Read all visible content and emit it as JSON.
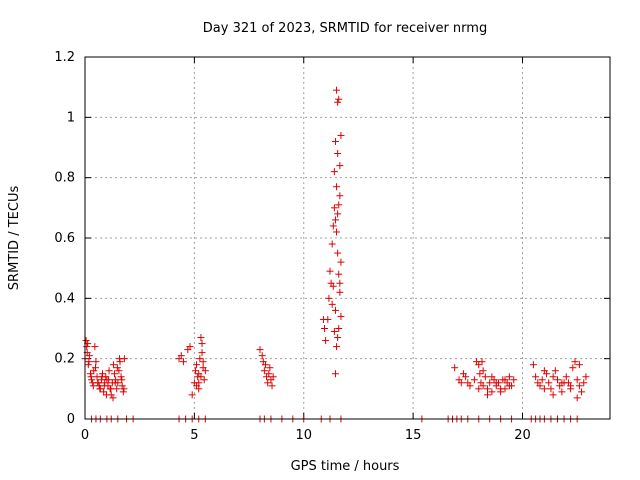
{
  "chart_data": {
    "type": "scatter",
    "title": "Day 321 of 2023, SRMTID for receiver nrmg",
    "xlabel": "GPS time / hours",
    "ylabel": "SRMTID / TECUs",
    "xlim": [
      0,
      24
    ],
    "ylim": [
      0,
      1.2
    ],
    "xticks": [
      0,
      5,
      10,
      15,
      20
    ],
    "xtick_labels": [
      "0",
      "5",
      "10",
      "15",
      "20"
    ],
    "yticks": [
      0,
      0.2,
      0.4,
      0.6,
      0.8,
      1.0,
      1.2
    ],
    "ytick_labels": [
      "0",
      "0.2",
      "0.4",
      "0.6",
      "0.8",
      "1",
      "1.2"
    ],
    "grid": true,
    "marker": "+",
    "color": "#e00000",
    "series": [
      {
        "name": "SRMTID",
        "x": [
          0.0,
          0.05,
          0.1,
          0.12,
          0.15,
          0.2,
          0.25,
          0.3,
          0.35,
          0.4,
          0.45,
          0.5,
          0.55,
          0.6,
          0.65,
          0.7,
          0.75,
          0.8,
          0.85,
          0.9,
          0.95,
          1.0,
          1.05,
          1.1,
          1.15,
          1.2,
          1.25,
          1.3,
          1.35,
          1.4,
          1.45,
          1.5,
          1.55,
          1.6,
          1.65,
          1.7,
          1.75,
          1.8,
          0.08,
          0.18,
          0.28,
          0.38,
          0.48,
          0.58,
          0.68,
          0.78,
          0.88,
          0.98,
          1.08,
          1.18,
          1.28,
          1.38,
          1.48,
          1.58,
          1.68,
          1.78,
          4.3,
          4.4,
          4.5,
          4.7,
          4.8,
          4.9,
          5.0,
          5.05,
          5.1,
          5.15,
          5.2,
          5.25,
          5.3,
          5.35,
          5.4,
          5.45,
          5.5,
          5.1,
          5.2,
          5.3,
          5.4,
          5.2,
          5.35,
          8.0,
          8.1,
          8.15,
          8.2,
          8.25,
          8.3,
          8.35,
          8.4,
          8.45,
          8.5,
          8.55,
          8.6,
          10.9,
          10.95,
          11.0,
          11.1,
          11.15,
          11.2,
          11.25,
          11.3,
          11.35,
          11.4,
          11.45,
          11.5,
          11.55,
          11.6,
          11.65,
          11.7,
          11.3,
          11.35,
          11.4,
          11.45,
          11.5,
          11.55,
          11.6,
          11.65,
          11.4,
          11.45,
          11.5,
          11.55,
          11.6,
          11.65,
          11.7,
          11.5,
          11.55,
          11.6,
          11.65,
          11.7,
          11.45,
          11.55,
          16.9,
          17.1,
          17.2,
          17.3,
          17.4,
          17.5,
          17.6,
          17.8,
          17.9,
          18.0,
          18.05,
          18.1,
          18.15,
          18.2,
          18.3,
          18.4,
          18.5,
          18.6,
          18.7,
          18.8,
          18.9,
          19.0,
          19.1,
          19.2,
          19.3,
          19.4,
          19.5,
          19.6,
          18.0,
          18.2,
          18.4,
          18.6,
          18.8,
          19.0,
          19.2,
          19.4,
          20.5,
          20.6,
          20.7,
          20.8,
          20.9,
          21.0,
          21.1,
          21.2,
          21.3,
          21.4,
          21.5,
          21.6,
          21.7,
          21.8,
          21.9,
          22.0,
          22.1,
          22.2,
          22.3,
          22.4,
          22.5,
          22.6,
          22.7,
          22.8,
          22.9,
          21.0,
          21.4,
          21.8,
          22.2,
          22.5,
          22.6,
          0.3,
          0.5,
          0.7,
          1.0,
          1.2,
          1.5,
          1.9,
          2.2,
          4.3,
          4.6,
          4.9,
          5.2,
          5.5,
          8.0,
          8.2,
          8.5,
          9.0,
          9.5,
          10.0,
          10.8,
          11.2,
          11.7,
          15.4,
          16.6,
          16.8,
          17.0,
          17.2,
          17.5,
          18.0,
          18.5,
          19.0,
          19.5,
          20.4,
          20.6,
          20.8,
          21.0,
          21.3,
          21.6,
          21.9,
          22.2,
          22.5
        ],
        "y": [
          0.2,
          0.26,
          0.22,
          0.25,
          0.18,
          0.21,
          0.15,
          0.13,
          0.12,
          0.16,
          0.24,
          0.19,
          0.14,
          0.12,
          0.11,
          0.1,
          0.13,
          0.15,
          0.09,
          0.12,
          0.14,
          0.13,
          0.11,
          0.16,
          0.1,
          0.08,
          0.12,
          0.18,
          0.15,
          0.13,
          0.1,
          0.12,
          0.16,
          0.19,
          0.14,
          0.11,
          0.09,
          0.2,
          0.24,
          0.19,
          0.14,
          0.11,
          0.17,
          0.12,
          0.1,
          0.14,
          0.11,
          0.08,
          0.13,
          0.1,
          0.07,
          0.12,
          0.17,
          0.2,
          0.13,
          0.1,
          0.2,
          0.21,
          0.19,
          0.23,
          0.24,
          0.08,
          0.12,
          0.16,
          0.18,
          0.14,
          0.15,
          0.2,
          0.27,
          0.25,
          0.19,
          0.13,
          0.16,
          0.11,
          0.12,
          0.14,
          0.17,
          0.1,
          0.22,
          0.23,
          0.21,
          0.19,
          0.16,
          0.18,
          0.14,
          0.12,
          0.15,
          0.17,
          0.13,
          0.11,
          0.14,
          0.33,
          0.3,
          0.26,
          0.33,
          0.4,
          0.49,
          0.45,
          0.58,
          0.64,
          0.7,
          0.66,
          0.62,
          0.55,
          0.48,
          0.42,
          0.34,
          0.38,
          0.44,
          0.29,
          0.36,
          0.24,
          0.27,
          0.3,
          0.45,
          0.82,
          0.92,
          0.77,
          0.88,
          0.71,
          0.84,
          0.94,
          1.09,
          1.05,
          1.06,
          0.74,
          0.52,
          0.15,
          0.68,
          0.17,
          0.13,
          0.12,
          0.15,
          0.14,
          0.12,
          0.11,
          0.13,
          0.19,
          0.18,
          0.15,
          0.12,
          0.19,
          0.11,
          0.14,
          0.1,
          0.12,
          0.09,
          0.13,
          0.11,
          0.12,
          0.09,
          0.13,
          0.1,
          0.12,
          0.14,
          0.11,
          0.13,
          0.1,
          0.16,
          0.08,
          0.14,
          0.12,
          0.1,
          0.13,
          0.11,
          0.18,
          0.14,
          0.12,
          0.11,
          0.13,
          0.16,
          0.15,
          0.12,
          0.1,
          0.14,
          0.16,
          0.13,
          0.11,
          0.09,
          0.12,
          0.14,
          0.12,
          0.1,
          0.17,
          0.19,
          0.13,
          0.11,
          0.09,
          0.12,
          0.14,
          0.1,
          0.08,
          0.12,
          0.11,
          0.07,
          0.18,
          0,
          0,
          0,
          0,
          0,
          0,
          0,
          0,
          0,
          0,
          0,
          0,
          0,
          0,
          0,
          0,
          0,
          0,
          0,
          0,
          0,
          0,
          0,
          0,
          0,
          0,
          0,
          0,
          0,
          0,
          0,
          0,
          0,
          0,
          0,
          0,
          0,
          0,
          0,
          0,
          0
        ]
      }
    ]
  }
}
